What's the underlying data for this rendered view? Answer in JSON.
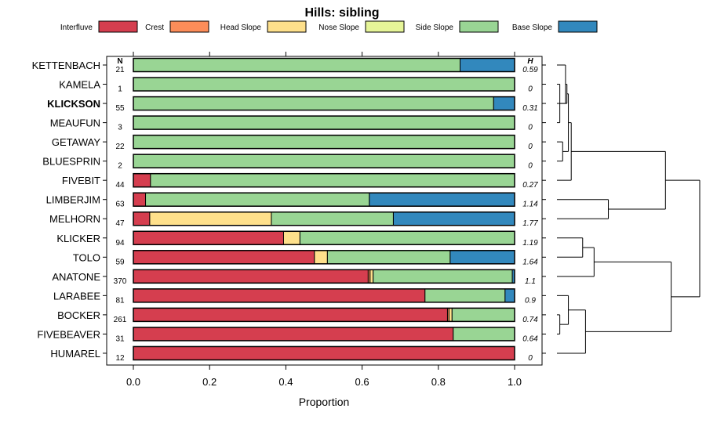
{
  "chart_data": {
    "type": "bar",
    "orientation": "horizontal",
    "stacked": true,
    "title": "Hills: sibling",
    "xlabel": "Proportion",
    "ylabel": "",
    "xlim": [
      0,
      1
    ],
    "x_ticks": [
      "0.0",
      "0.2",
      "0.4",
      "0.6",
      "0.8",
      "1.0"
    ],
    "x_tick_values": [
      0,
      0.2,
      0.4,
      0.6,
      0.8,
      1.0
    ],
    "n_header": "N",
    "h_header": "H",
    "legend_position": "top",
    "highlighted_category": "KLICKSON",
    "legend": [
      {
        "name": "Interfluve",
        "color": "#d53e4f"
      },
      {
        "name": "Crest",
        "color": "#fc8d59"
      },
      {
        "name": "Head Slope",
        "color": "#fee08b"
      },
      {
        "name": "Nose Slope",
        "color": "#e6f598"
      },
      {
        "name": "Side Slope",
        "color": "#99d594"
      },
      {
        "name": "Base Slope",
        "color": "#3288bd"
      }
    ],
    "rows": [
      {
        "name": "KETTENBACH",
        "n": "21",
        "h": "0.59",
        "values": [
          0,
          0,
          0,
          0,
          0.857,
          0.143
        ]
      },
      {
        "name": "KAMELA",
        "n": "1",
        "h": "0",
        "values": [
          0,
          0,
          0,
          0,
          1.0,
          0
        ]
      },
      {
        "name": "KLICKSON",
        "n": "55",
        "h": "0.31",
        "values": [
          0,
          0,
          0,
          0,
          0.945,
          0.055
        ]
      },
      {
        "name": "MEAUFUN",
        "n": "3",
        "h": "0",
        "values": [
          0,
          0,
          0,
          0,
          1.0,
          0
        ]
      },
      {
        "name": "GETAWAY",
        "n": "22",
        "h": "0",
        "values": [
          0,
          0,
          0,
          0,
          1.0,
          0
        ]
      },
      {
        "name": "BLUESPRIN",
        "n": "2",
        "h": "0",
        "values": [
          0,
          0,
          0,
          0,
          1.0,
          0
        ]
      },
      {
        "name": "FIVEBIT",
        "n": "44",
        "h": "0.27",
        "values": [
          0.045,
          0,
          0,
          0,
          0.955,
          0
        ]
      },
      {
        "name": "LIMBERJIM",
        "n": "63",
        "h": "1.14",
        "values": [
          0.032,
          0,
          0,
          0,
          0.587,
          0.381
        ]
      },
      {
        "name": "MELHORN",
        "n": "47",
        "h": "1.77",
        "values": [
          0.043,
          0,
          0.319,
          0,
          0.32,
          0.318
        ]
      },
      {
        "name": "KLICKER",
        "n": "94",
        "h": "1.19",
        "values": [
          0.394,
          0,
          0.043,
          0,
          0.563,
          0
        ]
      },
      {
        "name": "TOLO",
        "n": "59",
        "h": "1.64",
        "values": [
          0.475,
          0,
          0.034,
          0,
          0.322,
          0.169
        ]
      },
      {
        "name": "ANATONE",
        "n": "370",
        "h": "1.1",
        "values": [
          0.616,
          0.005,
          0.008,
          0,
          0.365,
          0.006
        ]
      },
      {
        "name": "LARABEE",
        "n": "81",
        "h": "0.9",
        "values": [
          0.765,
          0,
          0,
          0,
          0.21,
          0.025
        ]
      },
      {
        "name": "BOCKER",
        "n": "261",
        "h": "0.74",
        "values": [
          0.824,
          0.004,
          0.008,
          0,
          0.164,
          0
        ]
      },
      {
        "name": "FIVEBEAVER",
        "n": "31",
        "h": "0.64",
        "values": [
          0.839,
          0,
          0,
          0,
          0.161,
          0
        ]
      },
      {
        "name": "HUMAREL",
        "n": "12",
        "h": "0",
        "values": [
          1.0,
          0,
          0,
          0,
          0,
          0
        ]
      }
    ],
    "dendrogram": {
      "label": "clustering of rows",
      "merges": [
        {
          "a": 1,
          "b": 3,
          "height": 0.02
        },
        {
          "a": 4,
          "b": 5,
          "height": 0.04
        },
        {
          "a": 16,
          "b": 0,
          "height": 0.06
        },
        {
          "a": 18,
          "b": 2,
          "height": 0.07
        },
        {
          "a": 19,
          "b": 17,
          "height": 0.08
        },
        {
          "a": 20,
          "b": 6,
          "height": 0.1
        },
        {
          "a": 7,
          "b": 8,
          "height": 0.36
        },
        {
          "a": 21,
          "b": 22,
          "height": 0.76
        },
        {
          "a": 13,
          "b": 14,
          "height": 0.02
        },
        {
          "a": 24,
          "b": 12,
          "height": 0.08
        },
        {
          "a": 25,
          "b": 15,
          "height": 0.2
        },
        {
          "a": 9,
          "b": 10,
          "height": 0.18
        },
        {
          "a": 27,
          "b": 11,
          "height": 0.26
        },
        {
          "a": 28,
          "b": 26,
          "height": 0.8
        },
        {
          "a": 23,
          "b": 29,
          "height": 1.0
        }
      ]
    }
  }
}
